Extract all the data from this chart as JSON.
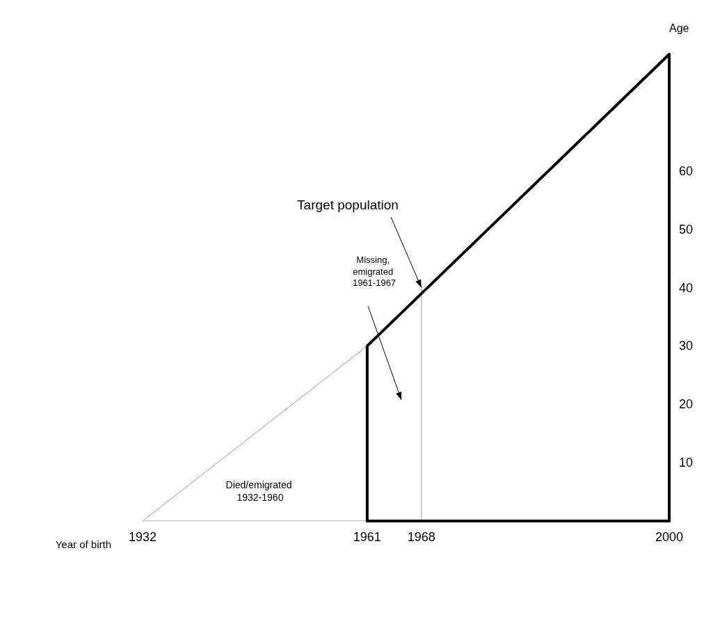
{
  "chart_data": {
    "type": "line",
    "xlabel": "Year of birth",
    "ylabel": "Age",
    "xlim": [
      1932,
      2000
    ],
    "xticks": [
      1932,
      1961,
      1968,
      2000
    ],
    "ylim": [
      0,
      80
    ],
    "yticks": [
      10,
      20,
      30,
      40,
      50,
      60
    ],
    "marker": "none",
    "series": [
      {
        "color": "#9a9a9a",
        "x": [
          1961,
          1932,
          1961
        ],
        "values": [
          30,
          0,
          0
        ]
      },
      {
        "color": "#9a9a9a",
        "x": [
          1968,
          1968
        ],
        "values": [
          0,
          40
        ]
      },
      {
        "color": "#000000",
        "x": [
          1961,
          1961,
          2000,
          2000
        ],
        "values": [
          0,
          30,
          80,
          0
        ]
      },
      {
        "color": "#000000",
        "x": [
          1961,
          2000
        ],
        "values": [
          0,
          0
        ]
      }
    ],
    "annotations": [
      {
        "text": "Target population",
        "x": 1968,
        "y": 40
      },
      "Missing, emigrated 1961-1967",
      "Died/emigrated 1932-1960"
    ]
  }
}
